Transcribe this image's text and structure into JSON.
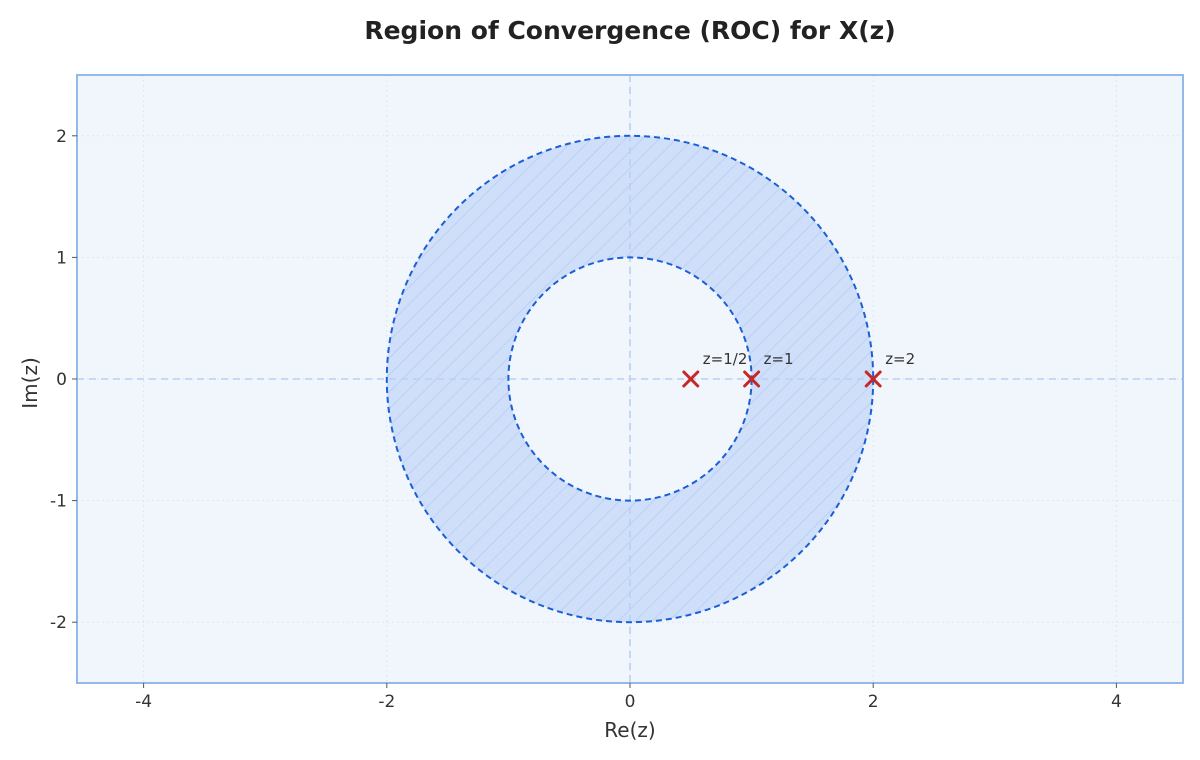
{
  "chart_data": {
    "type": "scatter",
    "title": "Region of Convergence (ROC) for X(z)",
    "xlabel": "Re(z)",
    "ylabel": "Im(z)",
    "xlim": [
      -4.5,
      4.5
    ],
    "ylim": [
      -2.5,
      2.5
    ],
    "xticks": [
      -4,
      -2,
      0,
      2,
      4
    ],
    "yticks": [
      -2,
      -1,
      0,
      1,
      2
    ],
    "xtick_labels": [
      "-4",
      "-2",
      "0",
      "2",
      "4"
    ],
    "ytick_labels": [
      "-2",
      "-1",
      "0",
      "1",
      "2"
    ],
    "grid": true,
    "roc": {
      "inner_radius": 1,
      "outer_radius": 2
    },
    "poles": [
      {
        "re": 0.5,
        "im": 0,
        "label": "z=1/2"
      },
      {
        "re": 1,
        "im": 0,
        "label": "z=1"
      },
      {
        "re": 2,
        "im": 0,
        "label": "z=2"
      }
    ],
    "colors": {
      "plot_background": "#f1f6fd",
      "frame": "#93b8ea",
      "roc_fill": "#cfdffa",
      "roc_hatch": "#a9c4ef",
      "roc_boundary": "#1a5fd6",
      "axis_line": "#b9d0f2",
      "pole": "#c62828"
    }
  }
}
